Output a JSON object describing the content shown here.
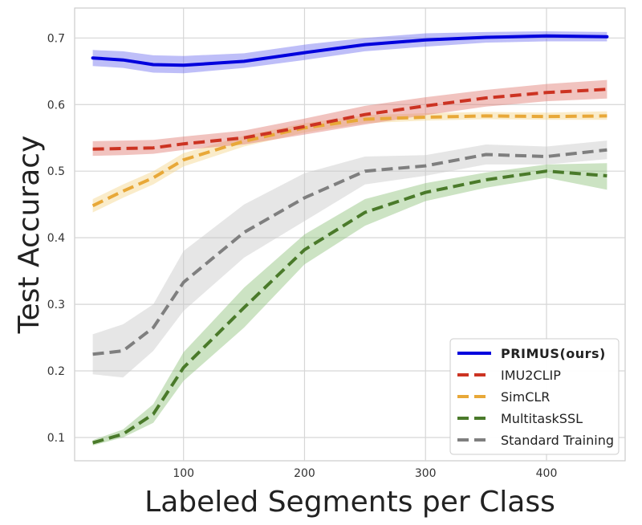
{
  "chart_data": {
    "type": "line",
    "title": "",
    "xlabel": "Labeled Segments per Class",
    "ylabel": "Test Accuracy",
    "xlim": [
      10,
      465
    ],
    "ylim": [
      0.065,
      0.745
    ],
    "xticks": [
      100,
      200,
      300,
      400
    ],
    "yticks": [
      0.1,
      0.2,
      0.3,
      0.4,
      0.5,
      0.6,
      0.7
    ],
    "grid": true,
    "legend_position": "bottom-right",
    "x": [
      25,
      50,
      75,
      100,
      150,
      200,
      250,
      300,
      350,
      400,
      450
    ],
    "series": [
      {
        "name": "PRIMUS(ours)",
        "bold": true,
        "color": "#0000dd",
        "band_color": "#6f6ff0",
        "line_style": "solid",
        "values": [
          0.67,
          0.667,
          0.66,
          0.659,
          0.665,
          0.678,
          0.69,
          0.697,
          0.701,
          0.703,
          0.702
        ],
        "lower": [
          0.658,
          0.655,
          0.648,
          0.647,
          0.655,
          0.667,
          0.68,
          0.687,
          0.693,
          0.695,
          0.695
        ],
        "upper": [
          0.682,
          0.68,
          0.674,
          0.673,
          0.677,
          0.69,
          0.7,
          0.707,
          0.709,
          0.71,
          0.709
        ]
      },
      {
        "name": "IMU2CLIP",
        "bold": false,
        "color": "#cc3322",
        "band_color": "#e07a70",
        "line_style": "dashed",
        "values": [
          0.533,
          0.534,
          0.535,
          0.541,
          0.55,
          0.567,
          0.585,
          0.598,
          0.61,
          0.618,
          0.623
        ],
        "lower": [
          0.523,
          0.524,
          0.526,
          0.532,
          0.54,
          0.555,
          0.57,
          0.584,
          0.597,
          0.605,
          0.609
        ],
        "upper": [
          0.545,
          0.546,
          0.547,
          0.552,
          0.561,
          0.579,
          0.598,
          0.611,
          0.622,
          0.631,
          0.637
        ]
      },
      {
        "name": "SimCLR",
        "bold": false,
        "color": "#e8a838",
        "band_color": "#f5d48a",
        "line_style": "dashed",
        "values": [
          0.448,
          0.47,
          0.49,
          0.517,
          0.545,
          0.565,
          0.578,
          0.581,
          0.583,
          0.582,
          0.583
        ],
        "lower": [
          0.438,
          0.46,
          0.48,
          0.507,
          0.537,
          0.558,
          0.572,
          0.576,
          0.578,
          0.577,
          0.577
        ],
        "upper": [
          0.458,
          0.48,
          0.5,
          0.527,
          0.553,
          0.572,
          0.584,
          0.587,
          0.589,
          0.588,
          0.59
        ]
      },
      {
        "name": "MultitaskSSL",
        "bold": false,
        "color": "#4a7a2a",
        "band_color": "#8fc27a",
        "line_style": "dashed",
        "values": [
          0.092,
          0.105,
          0.135,
          0.205,
          0.295,
          0.382,
          0.438,
          0.468,
          0.487,
          0.5,
          0.493
        ],
        "lower": [
          0.088,
          0.1,
          0.122,
          0.185,
          0.265,
          0.36,
          0.418,
          0.455,
          0.475,
          0.49,
          0.472
        ],
        "upper": [
          0.096,
          0.112,
          0.15,
          0.228,
          0.325,
          0.405,
          0.458,
          0.482,
          0.498,
          0.51,
          0.512
        ]
      },
      {
        "name": "Standard Training",
        "bold": false,
        "color": "#7f7f7f",
        "band_color": "#c8c8c8",
        "line_style": "dashed",
        "values": [
          0.225,
          0.23,
          0.265,
          0.333,
          0.408,
          0.46,
          0.5,
          0.508,
          0.525,
          0.522,
          0.532
        ],
        "lower": [
          0.195,
          0.19,
          0.23,
          0.29,
          0.37,
          0.425,
          0.48,
          0.493,
          0.51,
          0.51,
          0.518
        ],
        "upper": [
          0.255,
          0.27,
          0.3,
          0.38,
          0.45,
          0.497,
          0.522,
          0.524,
          0.54,
          0.537,
          0.546
        ]
      }
    ]
  }
}
